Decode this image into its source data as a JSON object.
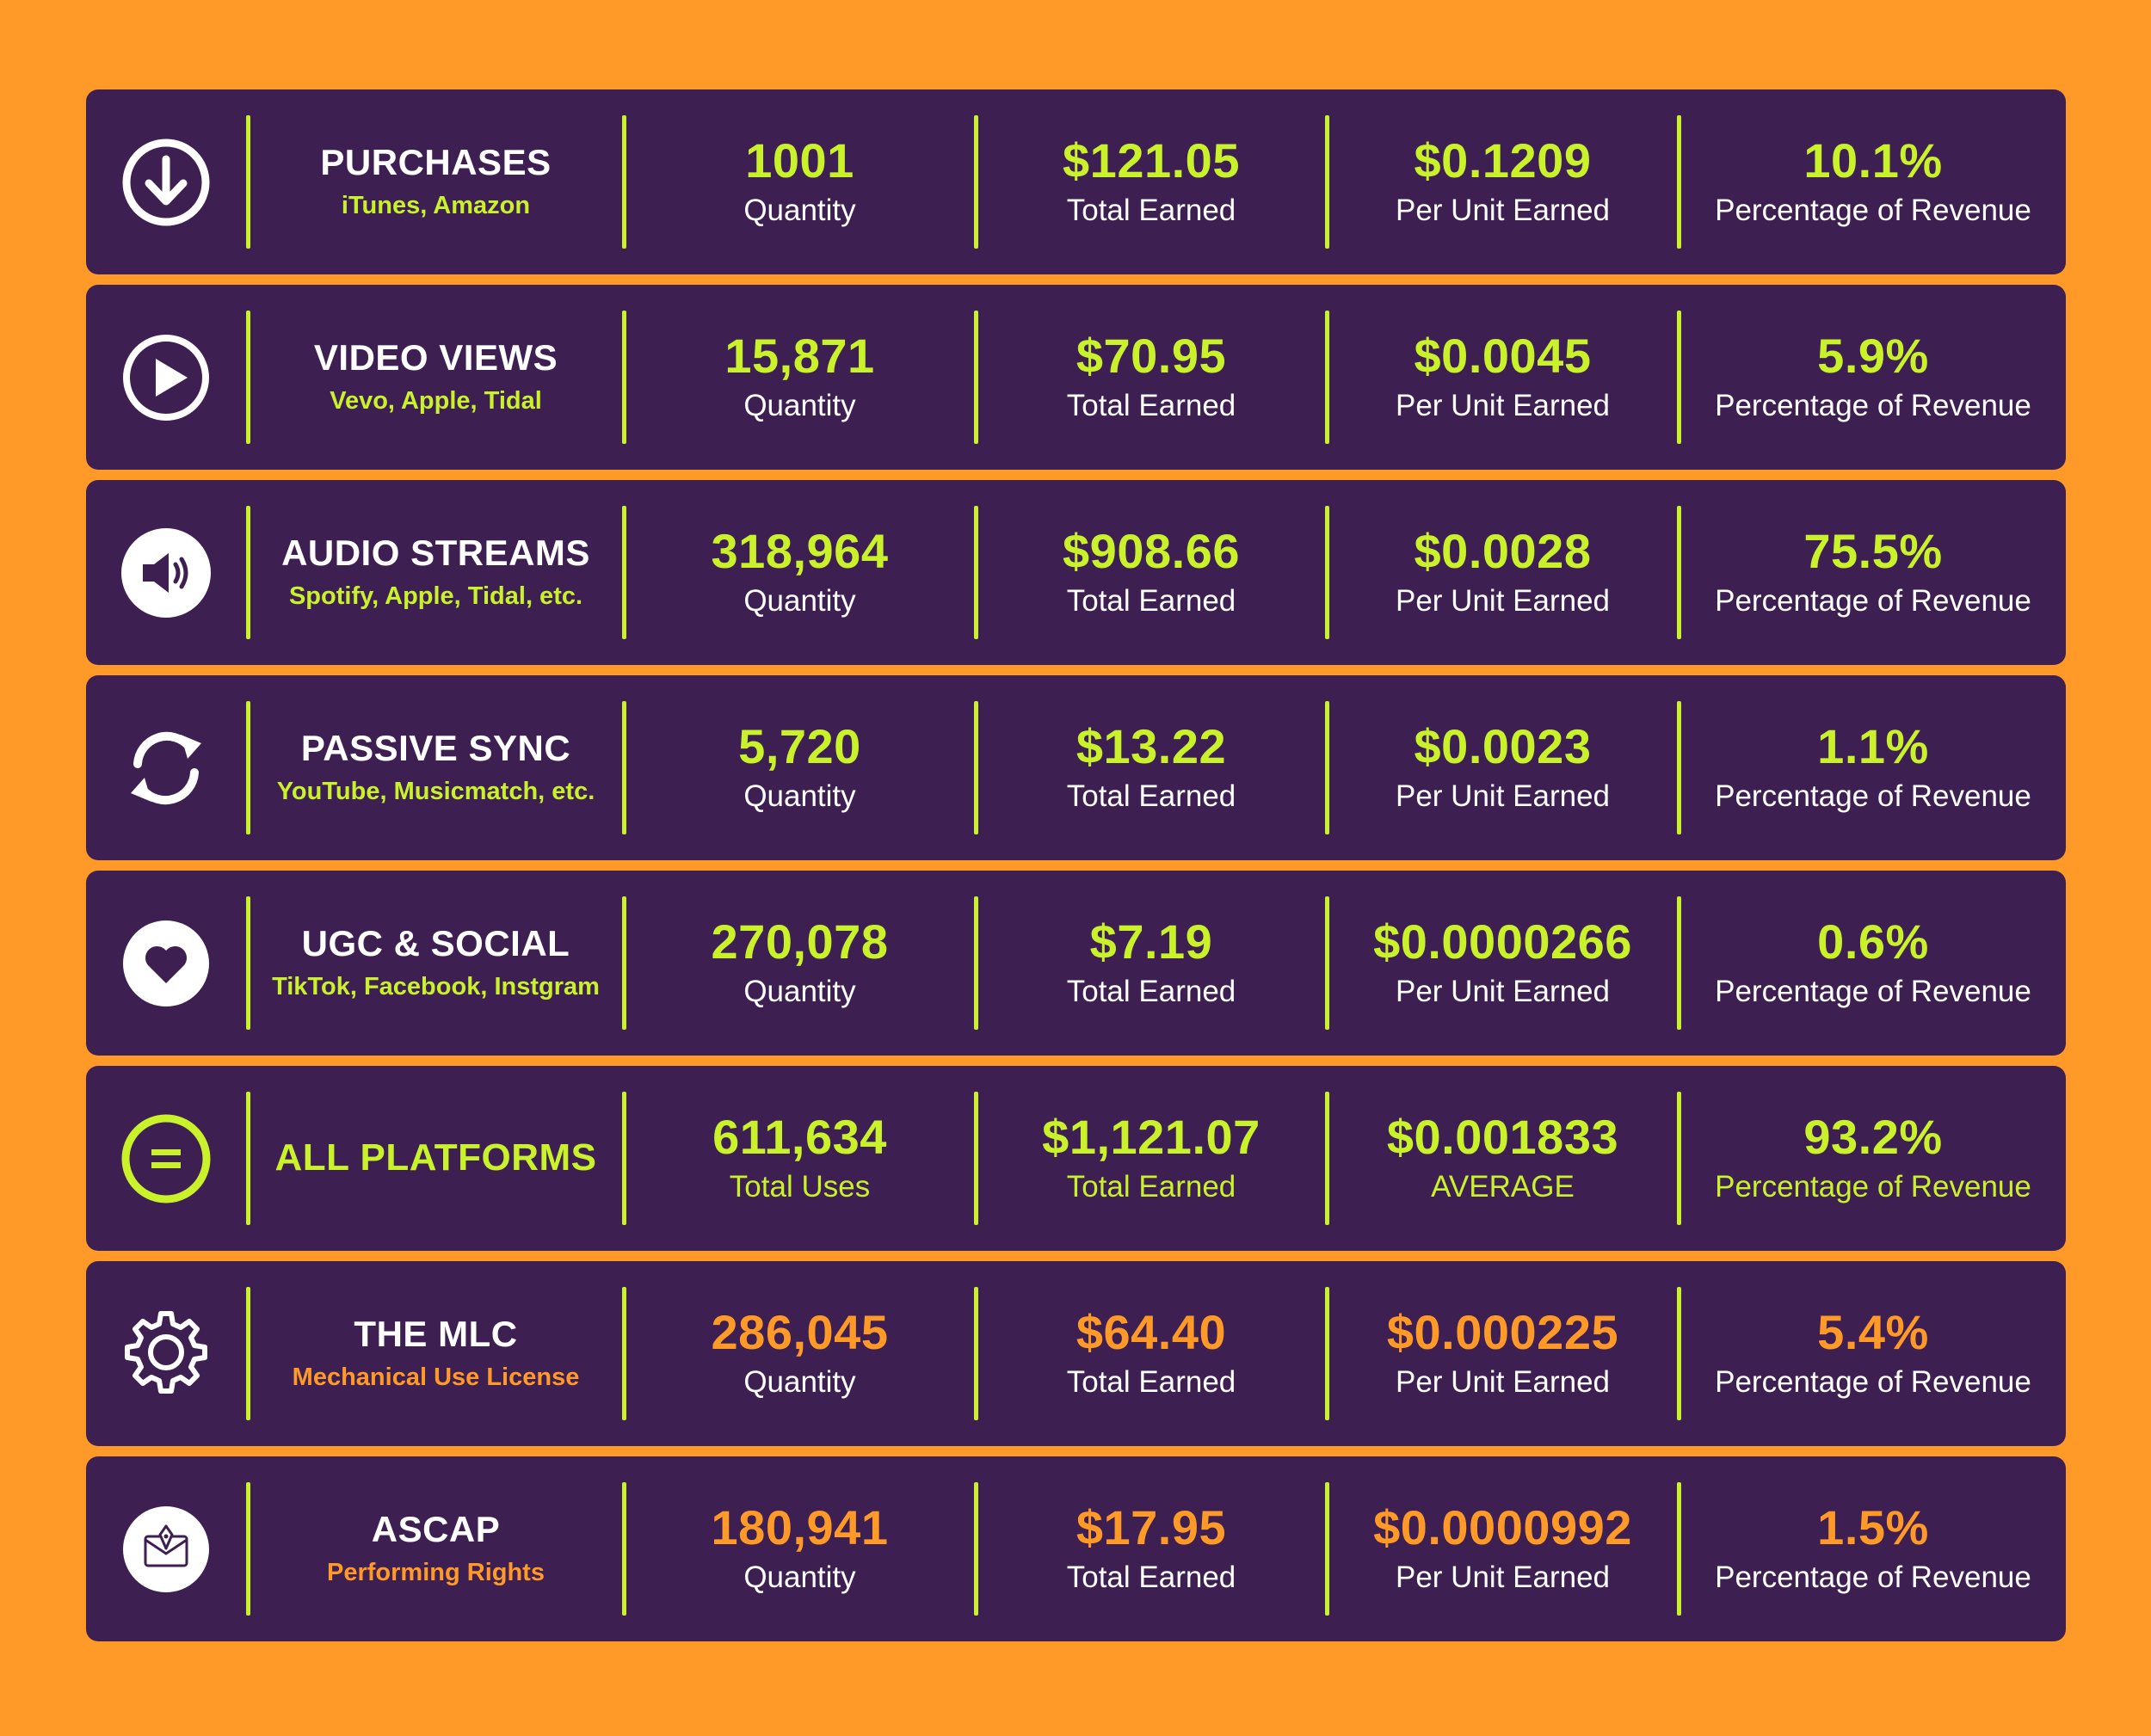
{
  "colors": {
    "background": "#FF9A28",
    "row": "#3D1F52",
    "accent_green": "#C9F22A",
    "accent_orange": "#FF9A28",
    "text": "#FFFFFF"
  },
  "rows": [
    {
      "icon": "download-icon",
      "name": "PURCHASES",
      "sub": "iTunes, Amazon",
      "qty": "1001",
      "qty_label": "Quantity",
      "total": "$121.05",
      "total_label": "Total Earned",
      "unit": "$0.1209",
      "unit_label": "Per Unit Earned",
      "pct": "10.1%",
      "pct_label": "Percentage of Revenue"
    },
    {
      "icon": "play-icon",
      "name": "VIDEO VIEWS",
      "sub": "Vevo, Apple, Tidal",
      "qty": "15,871",
      "qty_label": "Quantity",
      "total": "$70.95",
      "total_label": "Total Earned",
      "unit": "$0.0045",
      "unit_label": "Per Unit Earned",
      "pct": "5.9%",
      "pct_label": "Percentage of Revenue"
    },
    {
      "icon": "speaker-icon",
      "name": "AUDIO STREAMS",
      "sub": "Spotify, Apple, Tidal, etc.",
      "qty": "318,964",
      "qty_label": "Quantity",
      "total": "$908.66",
      "total_label": "Total Earned",
      "unit": "$0.0028",
      "unit_label": "Per Unit Earned",
      "pct": "75.5%",
      "pct_label": "Percentage of Revenue"
    },
    {
      "icon": "sync-icon",
      "name": "PASSIVE SYNC",
      "sub": "YouTube, Musicmatch, etc.",
      "qty": "5,720",
      "qty_label": "Quantity",
      "total": "$13.22",
      "total_label": "Total Earned",
      "unit": "$0.0023",
      "unit_label": "Per Unit Earned",
      "pct": "1.1%",
      "pct_label": "Percentage of Revenue"
    },
    {
      "icon": "heart-icon",
      "name": "UGC & SOCIAL",
      "sub": "TikTok, Facebook, Instgram",
      "qty": "270,078",
      "qty_label": "Quantity",
      "total": "$7.19",
      "total_label": "Total Earned",
      "unit": "$0.0000266",
      "unit_label": "Per Unit Earned",
      "pct": "0.6%",
      "pct_label": "Percentage of Revenue"
    },
    {
      "icon": "equals-icon",
      "name": "ALL PLATFORMS",
      "qty": "611,634",
      "qty_label": "Total Uses",
      "total": "$1,121.07",
      "total_label": "Total Earned",
      "unit": "$0.001833",
      "unit_label": "AVERAGE",
      "pct": "93.2%",
      "pct_label": "Percentage of Revenue"
    },
    {
      "icon": "gear-icon",
      "name": "THE MLC",
      "sub": "Mechanical Use License",
      "qty": "286,045",
      "qty_label": "Quantity",
      "total": "$64.40",
      "total_label": "Total Earned",
      "unit": "$0.000225",
      "unit_label": "Per Unit Earned",
      "pct": "5.4%",
      "pct_label": "Percentage of Revenue"
    },
    {
      "icon": "ascap-logo-icon",
      "name": "ASCAP",
      "sub": "Performing Rights",
      "qty": "180,941",
      "qty_label": "Quantity",
      "total": "$17.95",
      "total_label": "Total Earned",
      "unit": "$0.0000992",
      "unit_label": "Per Unit Earned",
      "pct": "1.5%",
      "pct_label": "Percentage of Revenue"
    }
  ]
}
